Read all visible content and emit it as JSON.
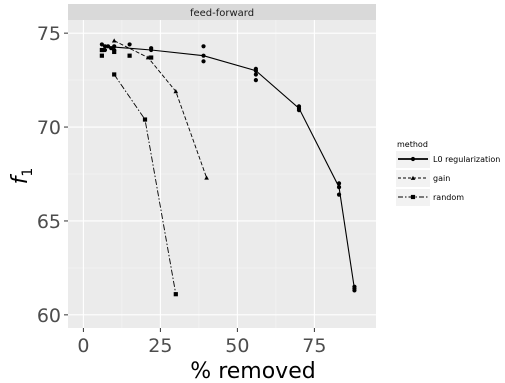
{
  "chart_data": {
    "type": "line",
    "panel_title": "feed-forward",
    "xlabel": "% removed",
    "ylabel": "f",
    "ylabel_subscript": "1",
    "xlim": [
      -5,
      95
    ],
    "ylim": [
      59.3,
      75.7
    ],
    "x_ticks": [
      0,
      25,
      50,
      75
    ],
    "x_tick_labels": [
      "0",
      "25",
      "50",
      "75"
    ],
    "y_ticks": [
      60,
      65,
      70,
      75
    ],
    "y_tick_labels": [
      "60",
      "65",
      "70",
      "75"
    ],
    "grid": true,
    "legend_title": "method",
    "legend_position": "right",
    "colors": {
      "panel": "#ebebeb",
      "strip": "#d9d9d9",
      "grid": "#ffffff",
      "ink": "#000000"
    },
    "series": [
      {
        "name": "L0 regularization",
        "linestyle": "solid",
        "line": [
          [
            7,
            74.3
          ],
          [
            22,
            74.1
          ],
          [
            39,
            73.8
          ],
          [
            56,
            73.0
          ],
          [
            70,
            71.0
          ],
          [
            83,
            66.8
          ],
          [
            88,
            61.4
          ]
        ],
        "points": [
          [
            6,
            74.4
          ],
          [
            7,
            74.3
          ],
          [
            7,
            74.1
          ],
          [
            8,
            74.3
          ],
          [
            9,
            74.2
          ],
          [
            10,
            74.3
          ],
          [
            10,
            74.1
          ],
          [
            15,
            74.4
          ],
          [
            22,
            74.2
          ],
          [
            22,
            74.1
          ],
          [
            39,
            74.3
          ],
          [
            39,
            73.8
          ],
          [
            39,
            73.5
          ],
          [
            56,
            73.1
          ],
          [
            56,
            73.0
          ],
          [
            56,
            72.8
          ],
          [
            56,
            72.5
          ],
          [
            70,
            71.1
          ],
          [
            70,
            71.0
          ],
          [
            70,
            70.9
          ],
          [
            83,
            67.0
          ],
          [
            83,
            66.8
          ],
          [
            83,
            66.4
          ],
          [
            88,
            61.5
          ],
          [
            88,
            61.4
          ],
          [
            88,
            61.3
          ]
        ]
      },
      {
        "name": "gain",
        "linestyle": "dashed",
        "line": [
          [
            10,
            74.6
          ],
          [
            21,
            73.7
          ],
          [
            30,
            71.9
          ],
          [
            40,
            67.3
          ]
        ],
        "points": [
          [
            10,
            74.6
          ],
          [
            21,
            73.7
          ],
          [
            30,
            71.9
          ],
          [
            40,
            67.3
          ]
        ]
      },
      {
        "name": "random",
        "linestyle": "dashdot",
        "line": [
          [
            10,
            72.8
          ],
          [
            20,
            70.4
          ],
          [
            30,
            61.1
          ]
        ],
        "points": [
          [
            6,
            74.1
          ],
          [
            6,
            73.8
          ],
          [
            10,
            74.0
          ],
          [
            10,
            72.8
          ],
          [
            15,
            73.8
          ],
          [
            22,
            73.7
          ],
          [
            20,
            70.4
          ],
          [
            30,
            61.1
          ]
        ]
      }
    ]
  }
}
